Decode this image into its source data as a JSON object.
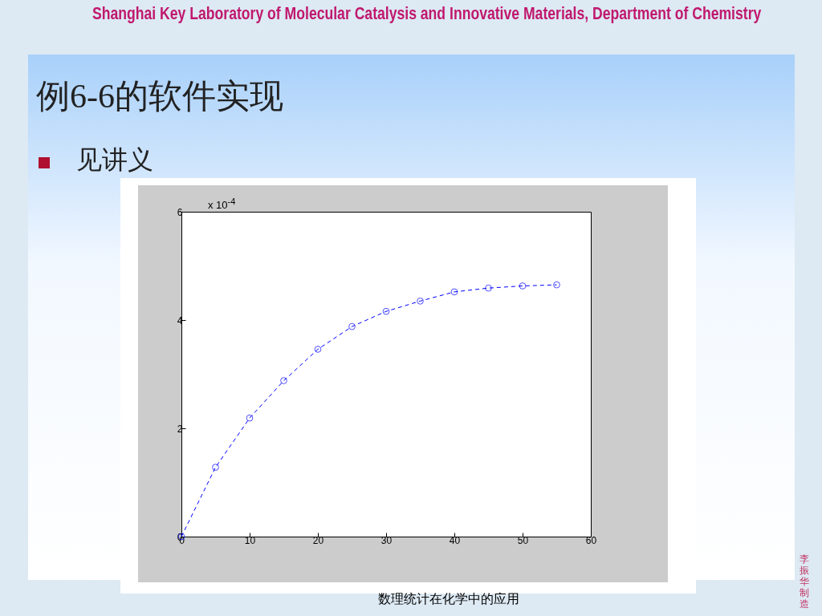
{
  "chart_data": {
    "type": "line",
    "title": "例6-6的软件实现",
    "subtitle": "见讲义",
    "annotations": [
      "Shanghai Key Laboratory of Molecular Catalysis and Innovative Materials, Department of Chemistry",
      "x 10$^{-4}$",
      "数理统计在化学中的应用",
      "李振华制造"
    ],
    "x": [
      0,
      5,
      10,
      15,
      20,
      25,
      30,
      35,
      40,
      45,
      50,
      55
    ],
    "series": [
      {
        "color": "#0000ff",
        "values": [
          0,
          1.28,
          2.19,
          2.88,
          3.46,
          3.88,
          4.16,
          4.35,
          4.52,
          4.59,
          4.63,
          4.65
        ]
      }
    ],
    "xlim": [
      0,
      60
    ],
    "xticks": [
      0,
      10,
      20,
      30,
      40,
      50,
      60
    ],
    "ylim": [
      0,
      6
    ],
    "yticks": [
      0,
      2,
      4,
      6
    ],
    "marker": "circle",
    "line_style": "dashed",
    "grid": false
  }
}
